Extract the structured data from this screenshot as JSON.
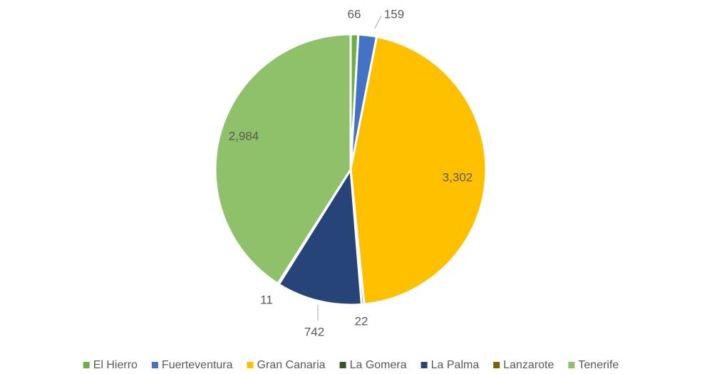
{
  "chart_data": {
    "type": "pie",
    "categories": [
      "El Hierro",
      "Fuerteventura",
      "Gran Canaria",
      "La Gomera",
      "La Palma",
      "Lanzarote",
      "Tenerife"
    ],
    "values": [
      66,
      159,
      3302,
      22,
      742,
      11,
      2984
    ],
    "value_labels": [
      "66",
      "159",
      "3,302",
      "22",
      "742",
      "11",
      "2,984"
    ],
    "colors": [
      "#70ad47",
      "#4472c4",
      "#ffc000",
      "#375623",
      "#264478",
      "#7f6000",
      "#8fc16b"
    ],
    "legend": "bottom"
  }
}
